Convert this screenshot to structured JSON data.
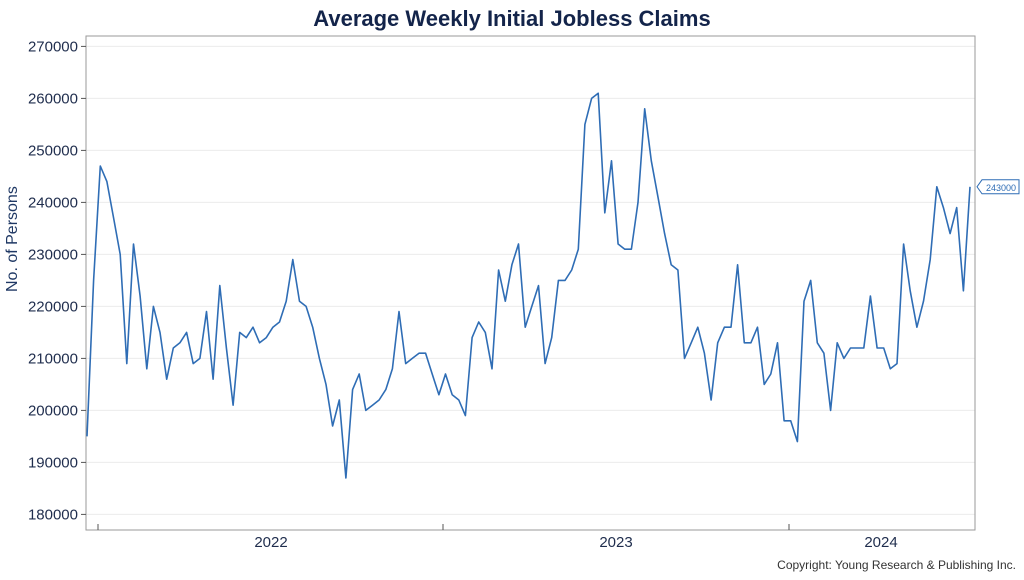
{
  "chart_data": {
    "type": "line",
    "title": "Average Weekly Initial Jobless Claims",
    "xlabel": "",
    "ylabel": "No. of Persons",
    "ylim": [
      177000,
      272000
    ],
    "yticks": [
      180000,
      190000,
      200000,
      210000,
      220000,
      230000,
      240000,
      250000,
      260000,
      270000
    ],
    "x_tick_labels": [
      "2022",
      "2023",
      "2024"
    ],
    "grid": true,
    "series": [
      {
        "color": "#2f6db5",
        "last_value_label": "243000",
        "values": [
          195000,
          225000,
          247000,
          244000,
          237000,
          230000,
          209000,
          232000,
          222000,
          208000,
          220000,
          215000,
          206000,
          212000,
          213000,
          215000,
          209000,
          210000,
          219000,
          206000,
          224000,
          212000,
          201000,
          215000,
          214000,
          216000,
          213000,
          214000,
          216000,
          217000,
          221000,
          229000,
          221000,
          220000,
          216000,
          210000,
          205000,
          197000,
          202000,
          187000,
          204000,
          207000,
          200000,
          201000,
          202000,
          204000,
          208000,
          219000,
          209000,
          210000,
          211000,
          211000,
          207000,
          203000,
          207000,
          203000,
          202000,
          199000,
          214000,
          217000,
          215000,
          208000,
          227000,
          221000,
          228000,
          232000,
          216000,
          220000,
          224000,
          209000,
          214000,
          225000,
          225000,
          227000,
          231000,
          255000,
          260000,
          261000,
          238000,
          248000,
          232000,
          231000,
          231000,
          240000,
          258000,
          248000,
          241000,
          234000,
          228000,
          227000,
          210000,
          213000,
          216000,
          211000,
          202000,
          213000,
          216000,
          216000,
          228000,
          213000,
          213000,
          216000,
          205000,
          207000,
          213000,
          198000,
          198000,
          194000,
          221000,
          225000,
          213000,
          211000,
          200000,
          213000,
          210000,
          212000,
          212000,
          212000,
          222000,
          212000,
          212000,
          208000,
          209000,
          232000,
          223000,
          216000,
          221000,
          229000,
          243000,
          239000,
          234000,
          239000,
          223000,
          243000
        ]
      }
    ]
  },
  "copyright": "Copyright: Young Research & Publishing Inc."
}
